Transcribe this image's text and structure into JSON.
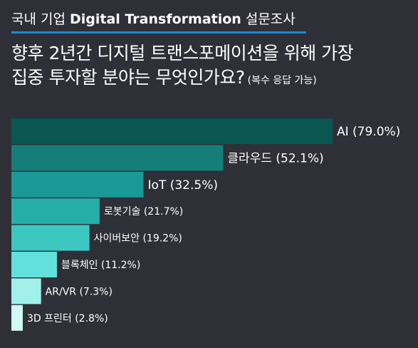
{
  "header": {
    "kicker_pre": "국내 기업 ",
    "kicker_brand": "Digital Transformation",
    "kicker_post": " 설문조사",
    "question_line1": "향후 2년간 디지털 트랜스포메이션을 위해 가장",
    "question_line2": "집중 투자할 분야는 무엇인가요?",
    "question_note": "(복수 응답 가능)"
  },
  "chart_data": {
    "type": "bar",
    "orientation": "horizontal",
    "title": "향후 2년간 디지털 트랜스포메이션을 위해 가장 집중 투자할 분야는 무엇인가요?",
    "unit": "%",
    "categories": [
      "AI",
      "클라우드",
      "IoT",
      "로봇기술",
      "사이버보안",
      "블록체인",
      "AR/VR",
      "3D 프린터"
    ],
    "values": [
      79.0,
      52.1,
      32.5,
      21.7,
      19.2,
      11.2,
      7.3,
      2.8
    ],
    "labels": [
      "AI (79.0%)",
      "클라우드 (52.1%)",
      "IoT (32.5%)",
      "로봇기술 (21.7%)",
      "사이버보안 (19.2%)",
      "블록체인 (11.2%)",
      "AR/VR (7.3%)",
      "3D 프린터 (2.8%)"
    ],
    "colors": [
      "#0a5650",
      "#157e79",
      "#199997",
      "#26aea8",
      "#3cc8c0",
      "#62e1dc",
      "#a2f0ec",
      "#d2f8f5"
    ],
    "xlim": [
      0,
      79.0
    ],
    "grid": false,
    "legend": "none"
  }
}
